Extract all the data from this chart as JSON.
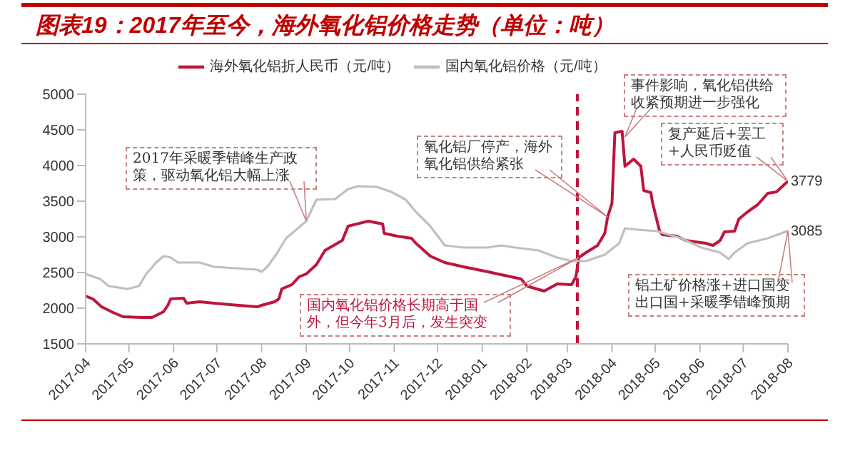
{
  "chart_data": {
    "type": "line",
    "title": "图表19：2017年至今，海外氧化铝价格走势（单位：吨）",
    "legend": "top",
    "xlim": [
      "2017-04-01",
      "2018-08-01"
    ],
    "xticks": [
      "2017-04",
      "2017-05",
      "2017-06",
      "2017-07",
      "2017-08",
      "2017-09",
      "2017-10",
      "2017-11",
      "2017-12",
      "2018-01",
      "2018-02",
      "2018-03",
      "2018-04",
      "2018-05",
      "2018-06",
      "2018-07",
      "2018-08"
    ],
    "ylim": [
      1500,
      5000
    ],
    "yticks": [
      1500,
      2000,
      2500,
      3000,
      3500,
      4000,
      4500,
      5000
    ],
    "ref_lines": [
      {
        "axis": "x",
        "value": "2018-03-08",
        "color": "#c0143c",
        "line_style": "dashed"
      }
    ],
    "series": [
      {
        "name": "海外氧化铝折人民币（元/吨）",
        "color": "#c0143c",
        "x": [
          "2017-04-01",
          "2017-04-06",
          "2017-04-12",
          "2017-04-20",
          "2017-04-27",
          "2017-05-10",
          "2017-05-17",
          "2017-05-25",
          "2017-05-28",
          "2017-05-30",
          "2017-06-08",
          "2017-06-10",
          "2017-06-19",
          "2017-06-29",
          "2017-07-16",
          "2017-07-29",
          "2017-08-01",
          "2017-08-10",
          "2017-08-13",
          "2017-08-15",
          "2017-08-22",
          "2017-08-27",
          "2017-09-01",
          "2017-09-08",
          "2017-09-14",
          "2017-09-26",
          "2017-09-30",
          "2017-10-14",
          "2017-10-24",
          "2017-10-25",
          "2017-11-03",
          "2017-11-13",
          "2017-11-16",
          "2017-11-26",
          "2017-12-06",
          "2017-12-19",
          "2018-01-05",
          "2018-01-21",
          "2018-01-28",
          "2018-02-01",
          "2018-02-13",
          "2018-02-22",
          "2018-03-04",
          "2018-03-07",
          "2018-03-09",
          "2018-03-14",
          "2018-03-22",
          "2018-03-27",
          "2018-03-29",
          "2018-04-01",
          "2018-04-03",
          "2018-04-08",
          "2018-04-10",
          "2018-04-16",
          "2018-04-21",
          "2018-04-23",
          "2018-04-28",
          "2018-04-29",
          "2018-05-04",
          "2018-05-06",
          "2018-05-16",
          "2018-05-22",
          "2018-06-05",
          "2018-06-10",
          "2018-06-15",
          "2018-06-18",
          "2018-06-25",
          "2018-06-28",
          "2018-07-04",
          "2018-07-11",
          "2018-07-18",
          "2018-07-24",
          "2018-08-01"
        ],
        "values": [
          2170,
          2130,
          2020,
          1940,
          1880,
          1870,
          1870,
          1950,
          2040,
          2130,
          2140,
          2070,
          2090,
          2070,
          2040,
          2020,
          2040,
          2090,
          2130,
          2270,
          2330,
          2440,
          2480,
          2610,
          2810,
          2950,
          3150,
          3220,
          3180,
          3050,
          3010,
          2980,
          2910,
          2730,
          2640,
          2580,
          2510,
          2440,
          2410,
          2310,
          2240,
          2340,
          2330,
          2440,
          2710,
          2780,
          2880,
          3050,
          3280,
          3470,
          4460,
          4480,
          3990,
          4090,
          3990,
          3650,
          3620,
          3490,
          3080,
          3030,
          3010,
          2950,
          2910,
          2880,
          2950,
          3070,
          3080,
          3250,
          3350,
          3450,
          3610,
          3630,
          3779
        ],
        "value_labels": [
          null,
          null,
          null,
          null,
          null,
          null,
          null,
          null,
          null,
          null,
          null,
          null,
          null,
          null,
          null,
          null,
          null,
          null,
          null,
          null,
          null,
          null,
          null,
          null,
          null,
          null,
          null,
          null,
          null,
          null,
          null,
          null,
          null,
          null,
          null,
          null,
          null,
          null,
          null,
          null,
          null,
          null,
          null,
          null,
          null,
          null,
          null,
          null,
          null,
          null,
          null,
          null,
          null,
          null,
          null,
          null,
          null,
          null,
          null,
          null,
          null,
          null,
          null,
          null,
          null,
          null,
          null,
          null,
          null,
          null,
          null,
          null,
          "3779"
        ]
      },
      {
        "name": "国内氧化铝价格（元/吨）",
        "color": "#bfbfbf",
        "x": [
          "2017-04-01",
          "2017-04-11",
          "2017-04-17",
          "2017-04-30",
          "2017-05-08",
          "2017-05-13",
          "2017-05-20",
          "2017-05-25",
          "2017-05-30",
          "2017-06-04",
          "2017-06-19",
          "2017-06-29",
          "2017-07-29",
          "2017-08-01",
          "2017-08-05",
          "2017-08-11",
          "2017-08-18",
          "2017-08-25",
          "2017-09-01",
          "2017-09-08",
          "2017-09-21",
          "2017-09-30",
          "2017-10-07",
          "2017-10-20",
          "2017-10-30",
          "2017-11-09",
          "2017-11-16",
          "2017-11-26",
          "2017-12-06",
          "2017-12-19",
          "2018-01-05",
          "2018-01-14",
          "2018-01-24",
          "2018-02-09",
          "2018-02-22",
          "2018-03-04",
          "2018-03-14",
          "2018-03-27",
          "2018-04-06",
          "2018-04-10",
          "2018-04-19",
          "2018-05-02",
          "2018-05-19",
          "2018-06-02",
          "2018-06-15",
          "2018-06-21",
          "2018-06-25",
          "2018-07-04",
          "2018-07-18",
          "2018-08-01"
        ],
        "values": [
          2480,
          2410,
          2310,
          2270,
          2310,
          2480,
          2640,
          2730,
          2710,
          2640,
          2640,
          2580,
          2540,
          2510,
          2580,
          2750,
          2980,
          3100,
          3220,
          3520,
          3530,
          3670,
          3710,
          3700,
          3630,
          3520,
          3350,
          3150,
          2880,
          2850,
          2850,
          2880,
          2850,
          2810,
          2710,
          2660,
          2660,
          2750,
          2910,
          3120,
          3100,
          3080,
          2980,
          2850,
          2780,
          2690,
          2780,
          2910,
          2980,
          3085
        ],
        "value_labels": [
          null,
          null,
          null,
          null,
          null,
          null,
          null,
          null,
          null,
          null,
          null,
          null,
          null,
          null,
          null,
          null,
          null,
          null,
          null,
          null,
          null,
          null,
          null,
          null,
          null,
          null,
          null,
          null,
          null,
          null,
          null,
          null,
          null,
          null,
          null,
          null,
          null,
          null,
          null,
          null,
          null,
          null,
          null,
          null,
          null,
          null,
          null,
          null,
          null,
          "3085"
        ]
      }
    ],
    "annotations": [
      {
        "text": "2017年采暖季错峰生产政策，驱动氧化铝大幅上涨",
        "x": "2017-09-01",
        "y": 3220
      },
      "氧化铝厂停产，海外氧化铝供给紧张",
      {
        "text": "事件影响，氧化铝供给收紧预期进一步强化",
        "x": "2018-04-10",
        "y": 4400
      },
      {
        "text": "复产延后+罢工+人民币贬值",
        "x": "2018-08-01",
        "y": 3779
      },
      "铝土矿价格涨+进口国变出口国+采暖季错峰预期",
      "国内氧化铝价格长期高于国外，但今年3月后，发生突变"
    ]
  }
}
